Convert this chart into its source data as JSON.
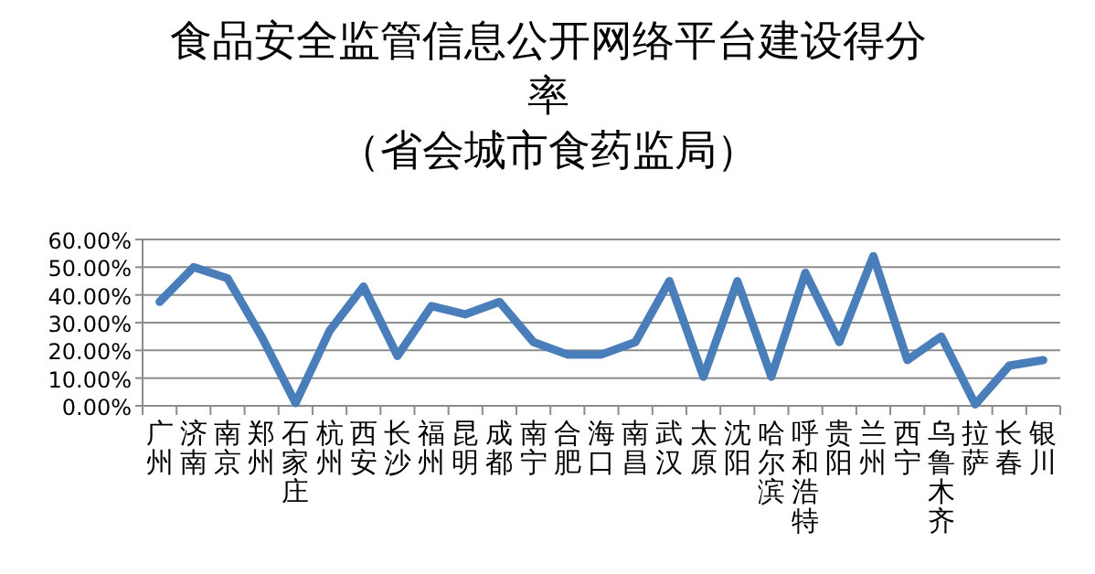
{
  "chart_data": {
    "type": "line",
    "title": "食品安全监管信息公开网络平台建设得分率",
    "subtitle": "（省会城市食药监局）",
    "categories": [
      "广州",
      "济南",
      "南京",
      "郑州",
      "石家庄",
      "杭州",
      "西安",
      "长沙",
      "福州",
      "昆明",
      "成都",
      "南宁",
      "合肥",
      "海口",
      "南昌",
      "武汉",
      "太原",
      "沈阳",
      "哈尔滨",
      "呼和浩特",
      "贵阳",
      "兰州",
      "西宁",
      "乌鲁木齐",
      "拉萨",
      "长春",
      "银川"
    ],
    "series": [
      {
        "color": "#4a7ebb",
        "values": [
          37.5,
          50,
          46,
          25,
          1,
          27,
          43,
          18,
          36,
          33,
          37.5,
          23,
          18.5,
          18.5,
          23,
          45,
          10.5,
          45,
          10.5,
          48,
          23,
          54,
          16.5,
          25,
          0.5,
          14.5,
          16.5
        ]
      }
    ],
    "ylim": [
      0,
      60
    ],
    "yticks": [
      {
        "value": 0,
        "label": "0.00%"
      },
      {
        "value": 10,
        "label": "10.00%"
      },
      {
        "value": 20,
        "label": "20.00%"
      },
      {
        "value": 30,
        "label": "30.00%"
      },
      {
        "value": 40,
        "label": "40.00%"
      },
      {
        "value": 50,
        "label": "50.00%"
      },
      {
        "value": 60,
        "label": "60.00%"
      }
    ],
    "grid": "y",
    "line_style": "solid"
  }
}
